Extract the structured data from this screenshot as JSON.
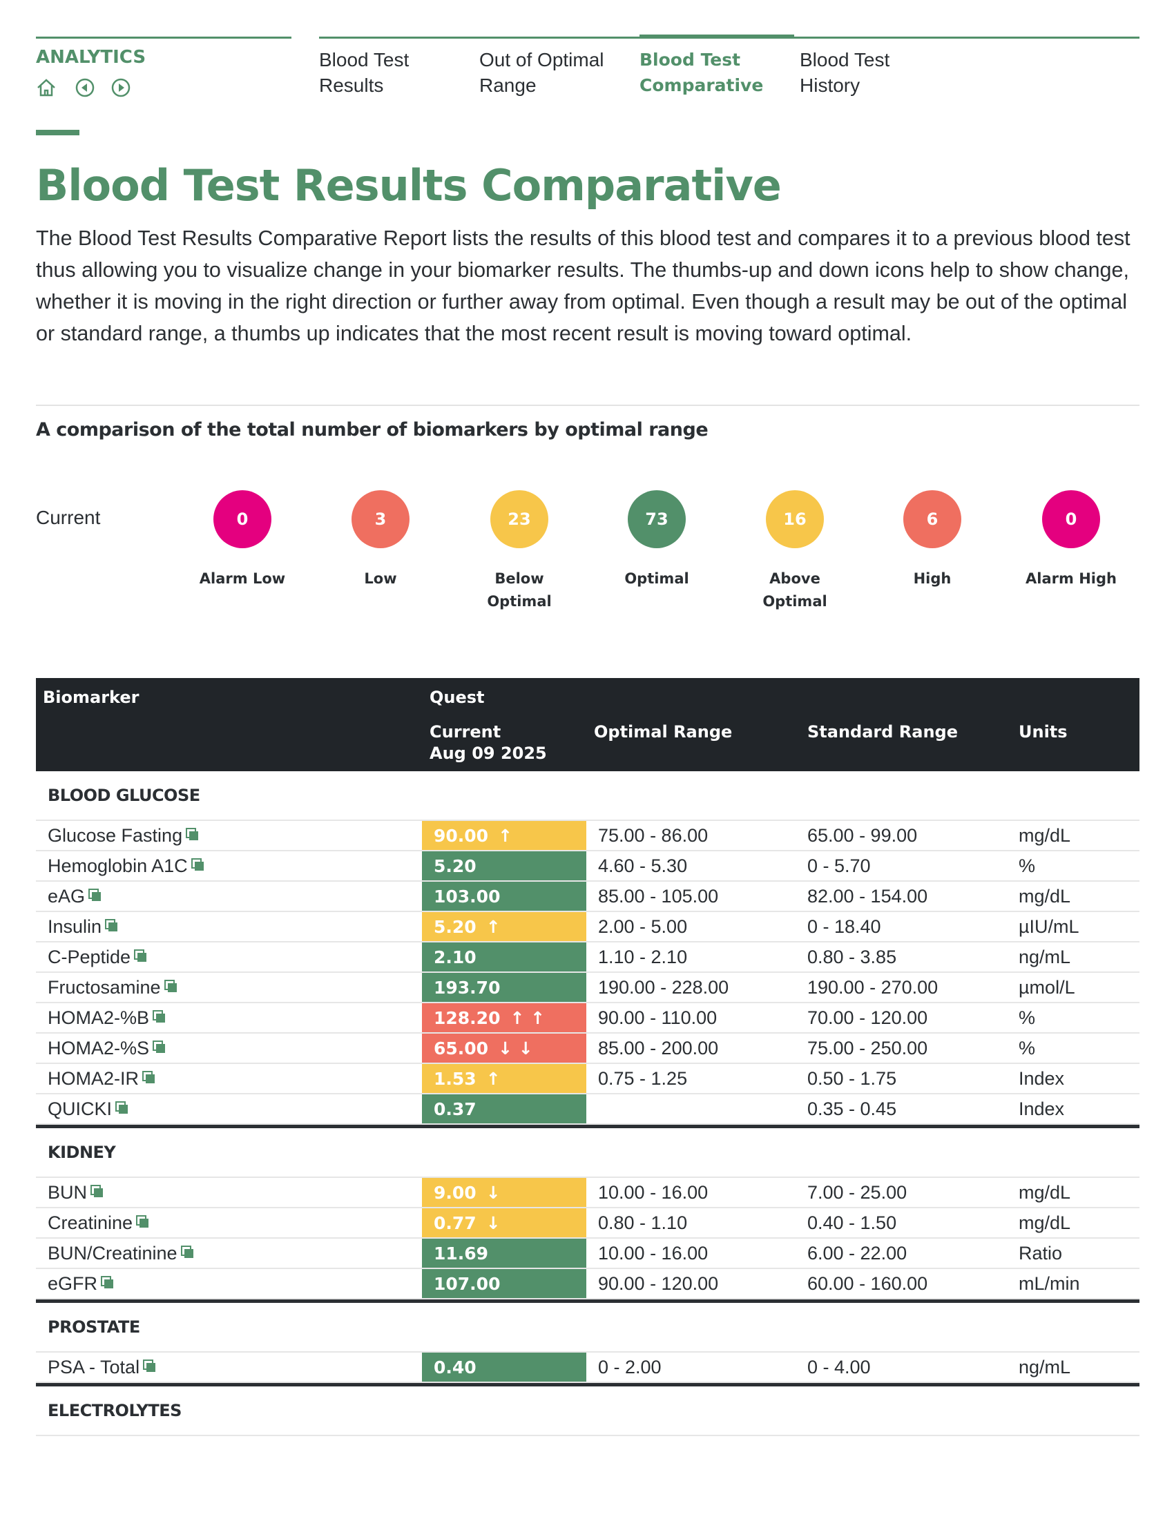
{
  "nav": {
    "section": "ANALYTICS",
    "tabs": [
      {
        "label": "Blood Test Results"
      },
      {
        "label": "Out of Optimal Range"
      },
      {
        "label": "Blood Test Comparative",
        "active": true
      },
      {
        "label": "Blood Test History"
      }
    ]
  },
  "header": {
    "title": "Blood Test Results Comparative",
    "description": "The Blood Test Results Comparative Report lists the results of this blood test and compares it to a previous blood test thus allowing you to visualize change in your biomarker results. The thumbs-up and down icons help to show change, whether it is moving in the right direction or further away from optimal. Even though a result may be out of the optimal or standard range, a thumbs up indicates that the most recent result is moving toward optimal."
  },
  "summary": {
    "heading": "A comparison of the total number of biomarkers by optimal range",
    "row_label": "Current",
    "items": [
      {
        "label": "Alarm Low",
        "value": 0,
        "color": "#e4007f"
      },
      {
        "label": "Low",
        "value": 3,
        "color": "#ef6f60"
      },
      {
        "label": "Below Optimal",
        "value": 23,
        "color": "#f7c64a"
      },
      {
        "label": "Optimal",
        "value": 73,
        "color": "#52906a"
      },
      {
        "label": "Above Optimal",
        "value": 16,
        "color": "#f7c64a"
      },
      {
        "label": "High",
        "value": 6,
        "color": "#ef6f60"
      },
      {
        "label": "Alarm High",
        "value": 0,
        "color": "#e4007f"
      }
    ]
  },
  "table": {
    "header": {
      "biomarker": "Biomarker",
      "lab": "Quest",
      "current": "Current",
      "date": "Aug 09 2025",
      "optimal": "Optimal Range",
      "standard": "Standard Range",
      "units": "Units"
    },
    "status_colors": {
      "high": "#f7c64a",
      "optimal": "#52906a",
      "alarm": "#ef6f60"
    },
    "groups": [
      {
        "name": "BLOOD GLUCOSE",
        "rows": [
          {
            "name": "Glucose Fasting",
            "value": "90.00",
            "arrows": "↑",
            "status": "high",
            "optimal": "75.00 - 86.00",
            "standard": "65.00 - 99.00",
            "units": "mg/dL"
          },
          {
            "name": "Hemoglobin A1C",
            "value": "5.20",
            "status": "optimal",
            "optimal": "4.60 - 5.30",
            "standard": "0 - 5.70",
            "units": "%"
          },
          {
            "name": "eAG",
            "value": "103.00",
            "status": "optimal",
            "optimal": "85.00 - 105.00",
            "standard": "82.00 - 154.00",
            "units": "mg/dL"
          },
          {
            "name": "Insulin",
            "value": "5.20",
            "arrows": "↑",
            "status": "high",
            "optimal": "2.00 - 5.00",
            "standard": "0 - 18.40",
            "units": "µIU/mL"
          },
          {
            "name": "C-Peptide",
            "value": "2.10",
            "status": "optimal",
            "optimal": "1.10 - 2.10",
            "standard": "0.80 - 3.85",
            "units": "ng/mL"
          },
          {
            "name": "Fructosamine",
            "value": "193.70",
            "status": "optimal",
            "optimal": "190.00 - 228.00",
            "standard": "190.00 - 270.00",
            "units": "µmol/L"
          },
          {
            "name": "HOMA2-%B",
            "value": "128.20",
            "arrows": "↑ ↑",
            "status": "alarm",
            "optimal": "90.00 - 110.00",
            "standard": "70.00 - 120.00",
            "units": "%"
          },
          {
            "name": "HOMA2-%S",
            "value": "65.00",
            "arrows": "↓ ↓",
            "status": "alarm",
            "optimal": "85.00 - 200.00",
            "standard": "75.00 - 250.00",
            "units": "%"
          },
          {
            "name": "HOMA2-IR",
            "value": "1.53",
            "arrows": "↑",
            "status": "high",
            "optimal": "0.75 - 1.25",
            "standard": "0.50 - 1.75",
            "units": "Index"
          },
          {
            "name": "QUICKI",
            "value": "0.37",
            "status": "optimal",
            "standard": "0.35 - 0.45",
            "units": "Index"
          }
        ]
      },
      {
        "name": "KIDNEY",
        "rows": [
          {
            "name": "BUN",
            "value": "9.00",
            "arrows": "↓",
            "status": "high",
            "optimal": "10.00 - 16.00",
            "standard": "7.00 - 25.00",
            "units": "mg/dL"
          },
          {
            "name": "Creatinine",
            "value": "0.77",
            "arrows": "↓",
            "status": "high",
            "optimal": "0.80 - 1.10",
            "standard": "0.40 - 1.50",
            "units": "mg/dL"
          },
          {
            "name": "BUN/Creatinine",
            "value": "11.69",
            "status": "optimal",
            "optimal": "10.00 - 16.00",
            "standard": "6.00 - 22.00",
            "units": "Ratio"
          },
          {
            "name": "eGFR",
            "value": "107.00",
            "status": "optimal",
            "optimal": "90.00 - 120.00",
            "standard": "60.00 - 160.00",
            "units": "mL/min"
          }
        ]
      },
      {
        "name": "PROSTATE",
        "rows": [
          {
            "name": "PSA - Total",
            "value": "0.40",
            "status": "optimal",
            "optimal": "0 - 2.00",
            "standard": "0 - 4.00",
            "units": "ng/mL"
          }
        ]
      },
      {
        "name": "ELECTROLYTES",
        "rows": []
      }
    ]
  }
}
